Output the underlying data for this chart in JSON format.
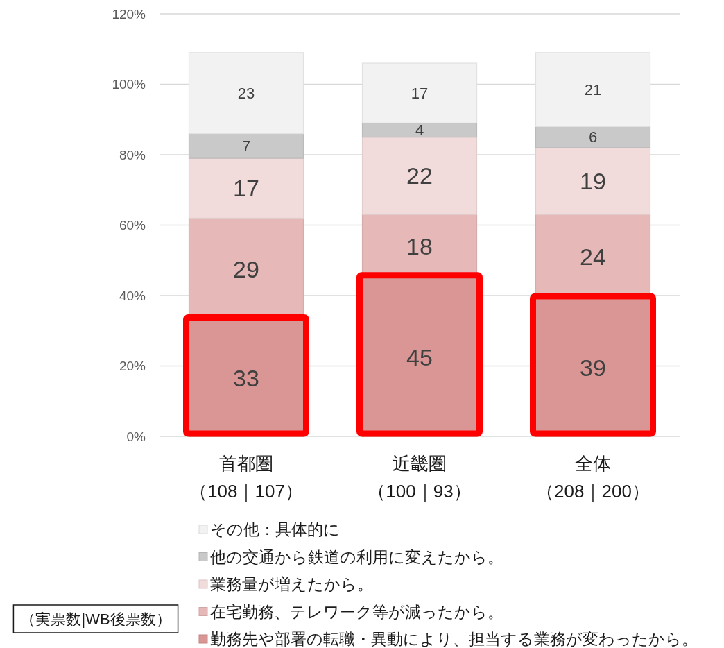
{
  "chart_data": {
    "type": "bar",
    "stacked": true,
    "categories": [
      "首都圏（108｜107）",
      "近畿圏（100｜93）",
      "全体（208｜200）"
    ],
    "series": [
      {
        "name": "勤務先や部署の転職・異動により、担当する業務が変わったから。",
        "color": "#d99694",
        "values": [
          33,
          45,
          39
        ]
      },
      {
        "name": "在宅勤務、テレワーク等が減ったから。",
        "color": "#e6b9b8",
        "values": [
          29,
          18,
          24
        ]
      },
      {
        "name": "業務量が増えたから。",
        "color": "#f2dcdb",
        "values": [
          17,
          22,
          19
        ]
      },
      {
        "name": "他の交通から鉄道の利用に変えたから。",
        "color": "#c9c9c9",
        "values": [
          7,
          4,
          6
        ]
      },
      {
        "name": "その他：具体的に",
        "color": "#f2f2f2",
        "values": [
          23,
          17,
          21
        ]
      }
    ],
    "ylim": [
      0,
      120
    ],
    "yticks": [
      {
        "value": 0,
        "label": "0%"
      },
      {
        "value": 20,
        "label": "20%"
      },
      {
        "value": 40,
        "label": "40%"
      },
      {
        "value": 60,
        "label": "60%"
      },
      {
        "value": 80,
        "label": "80%"
      },
      {
        "value": 100,
        "label": "100%"
      },
      {
        "value": 120,
        "label": "120%"
      }
    ],
    "grid": "y",
    "legend": "bottom",
    "data_labels": true,
    "annotations": [
      "（実票数|WB後票数）"
    ]
  }
}
